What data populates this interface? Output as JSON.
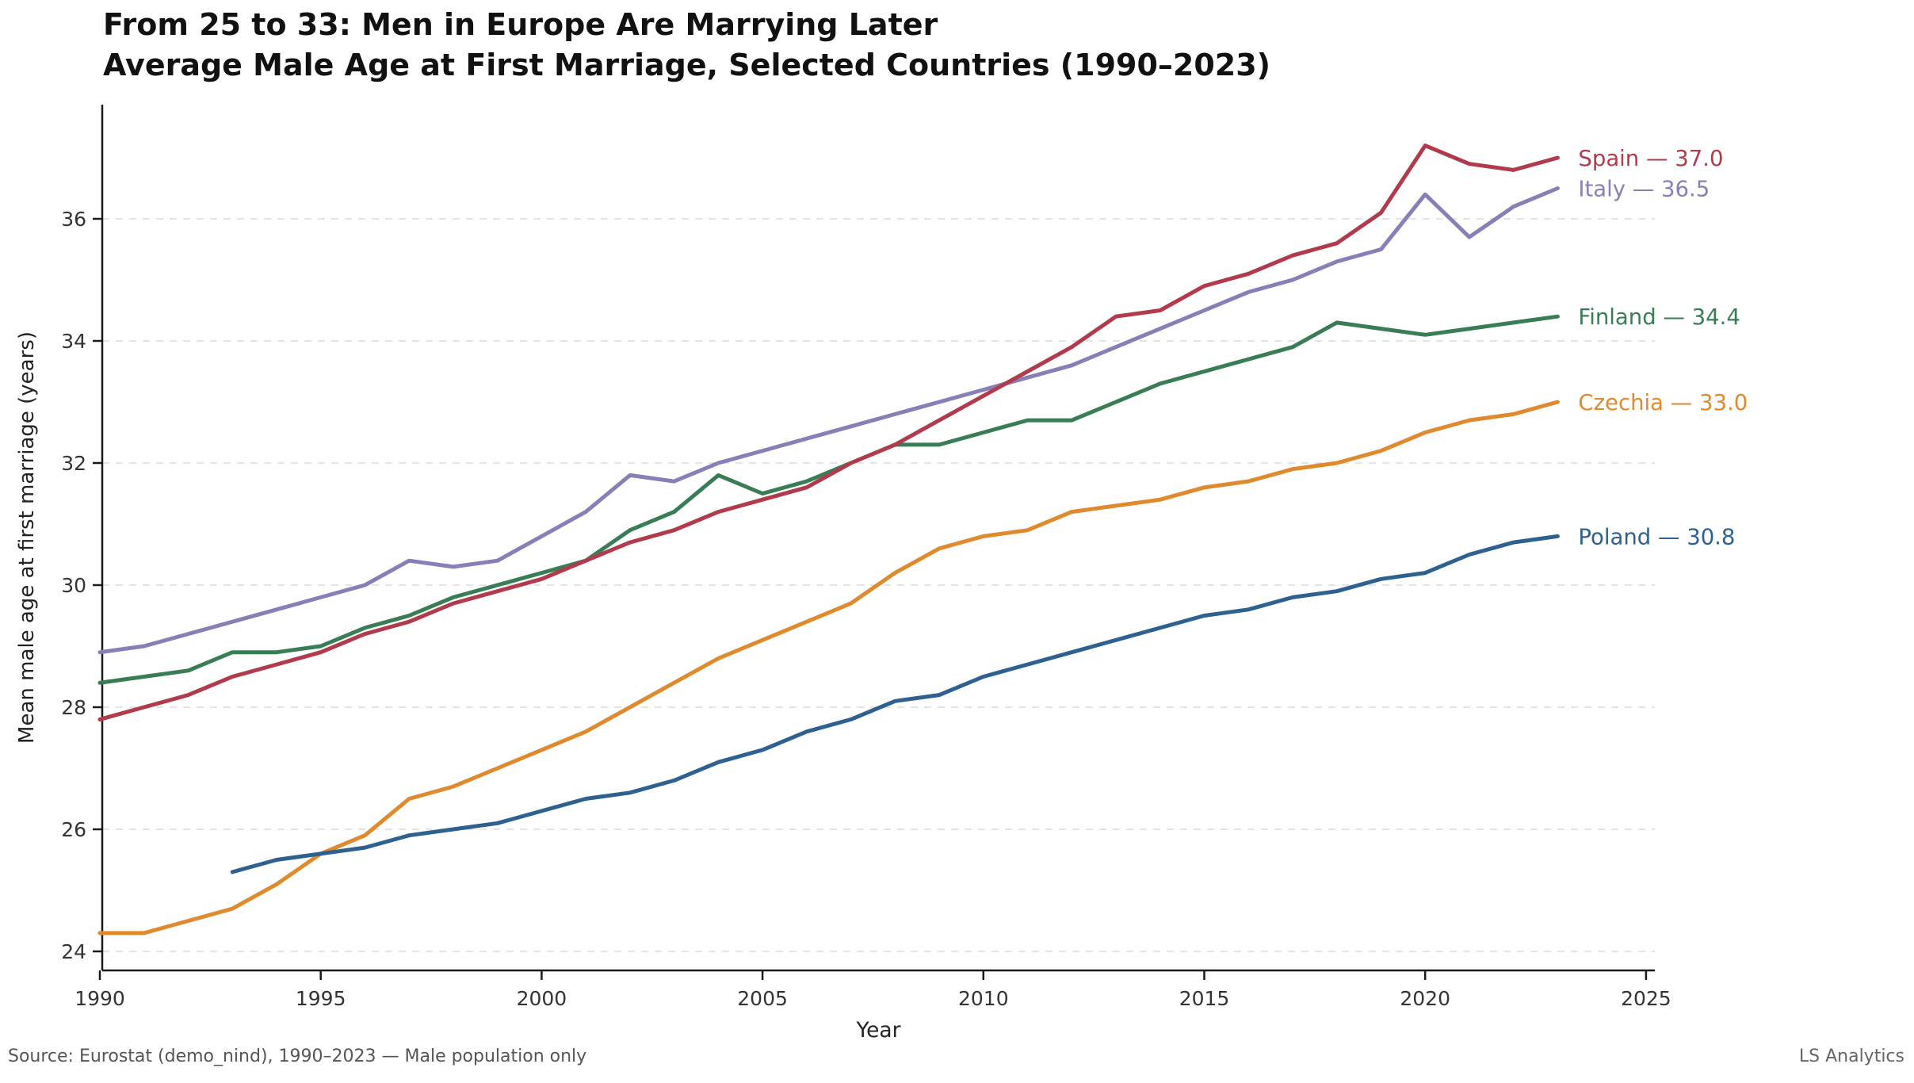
{
  "header": {
    "title": "From 25 to 33: Men in Europe Are Marrying Later",
    "subtitle": "Average Male Age at First Marriage, Selected Countries (1990–2023)"
  },
  "footer": {
    "source": "Source: Eurostat (demo_nind), 1990–2023 — Male population only",
    "credit": "LS Analytics"
  },
  "chart_data": {
    "type": "line",
    "title": "From 25 to 33: Men in Europe Are Marrying Later",
    "subtitle": "Average Male Age at First Marriage, Selected Countries (1990–2023)",
    "xlabel": "Year",
    "ylabel": "Mean male age at first marriage (years)",
    "x_ticks": [
      1990,
      1995,
      2000,
      2005,
      2010,
      2015,
      2020,
      2025
    ],
    "y_ticks": [
      24,
      26,
      28,
      30,
      32,
      34,
      36
    ],
    "xlim": [
      1990,
      2025.2
    ],
    "ylim": [
      23.7,
      37.9
    ],
    "grid": "horizontal-dashed",
    "grid_color": "#e0e0e0",
    "axis_color": "#1a1a1a",
    "tick_label_color": "#333333",
    "axis_label_color": "#222222",
    "legend_position": "end-of-line-labels",
    "series": [
      {
        "name": "Italy",
        "color": "#8780b6",
        "start_year": 1990,
        "end_label": "Italy — 36.5",
        "values": [
          28.9,
          29.0,
          29.2,
          29.4,
          29.6,
          29.8,
          30.0,
          30.4,
          30.3,
          30.4,
          30.8,
          31.2,
          31.8,
          31.7,
          32.0,
          32.2,
          32.4,
          32.6,
          32.8,
          33.0,
          33.2,
          33.4,
          33.6,
          33.9,
          34.2,
          34.5,
          34.8,
          35.0,
          35.3,
          35.5,
          36.4,
          35.7,
          36.2,
          36.5
        ]
      },
      {
        "name": "Finland",
        "color": "#397d56",
        "start_year": 1990,
        "end_label": "Finland — 34.4",
        "values": [
          28.4,
          28.5,
          28.6,
          28.9,
          28.9,
          29.0,
          29.3,
          29.5,
          29.8,
          30.0,
          30.2,
          30.4,
          30.9,
          31.2,
          31.8,
          31.5,
          31.7,
          32.0,
          32.3,
          32.3,
          32.5,
          32.7,
          32.7,
          33.0,
          33.3,
          33.5,
          33.7,
          33.9,
          34.3,
          34.2,
          34.1,
          34.2,
          34.3,
          34.4
        ]
      },
      {
        "name": "Czechia",
        "color": "#e08a2e",
        "start_year": 1990,
        "end_label": "Czechia — 33.0",
        "values": [
          24.3,
          24.3,
          24.5,
          24.7,
          25.1,
          25.6,
          25.9,
          26.5,
          26.7,
          27.0,
          27.3,
          27.6,
          28.0,
          28.4,
          28.8,
          29.1,
          29.4,
          29.7,
          30.2,
          30.6,
          30.8,
          30.9,
          31.2,
          31.3,
          31.4,
          31.6,
          31.7,
          31.9,
          32.0,
          32.2,
          32.5,
          32.7,
          32.8,
          33.0
        ]
      },
      {
        "name": "Poland",
        "color": "#2e618f",
        "start_year": 1993,
        "end_label": "Poland — 30.8",
        "values": [
          25.3,
          25.5,
          25.6,
          25.7,
          25.9,
          26.0,
          26.1,
          26.3,
          26.5,
          26.6,
          26.8,
          27.1,
          27.3,
          27.6,
          27.8,
          28.1,
          28.2,
          28.5,
          28.7,
          28.9,
          29.1,
          29.3,
          29.5,
          29.6,
          29.8,
          29.9,
          30.1,
          30.2,
          30.5,
          30.7,
          30.8
        ]
      },
      {
        "name": "Spain",
        "color": "#b23a4d",
        "start_year": 1990,
        "end_label": "Spain — 37.0",
        "values": [
          27.8,
          28.0,
          28.2,
          28.5,
          28.7,
          28.9,
          29.2,
          29.4,
          29.7,
          29.9,
          30.1,
          30.4,
          30.7,
          30.9,
          31.2,
          31.4,
          31.6,
          32.0,
          32.3,
          32.7,
          33.1,
          33.5,
          33.9,
          34.4,
          34.5,
          34.9,
          35.1,
          35.4,
          35.6,
          36.1,
          37.2,
          36.9,
          36.8,
          37.0
        ]
      }
    ]
  }
}
